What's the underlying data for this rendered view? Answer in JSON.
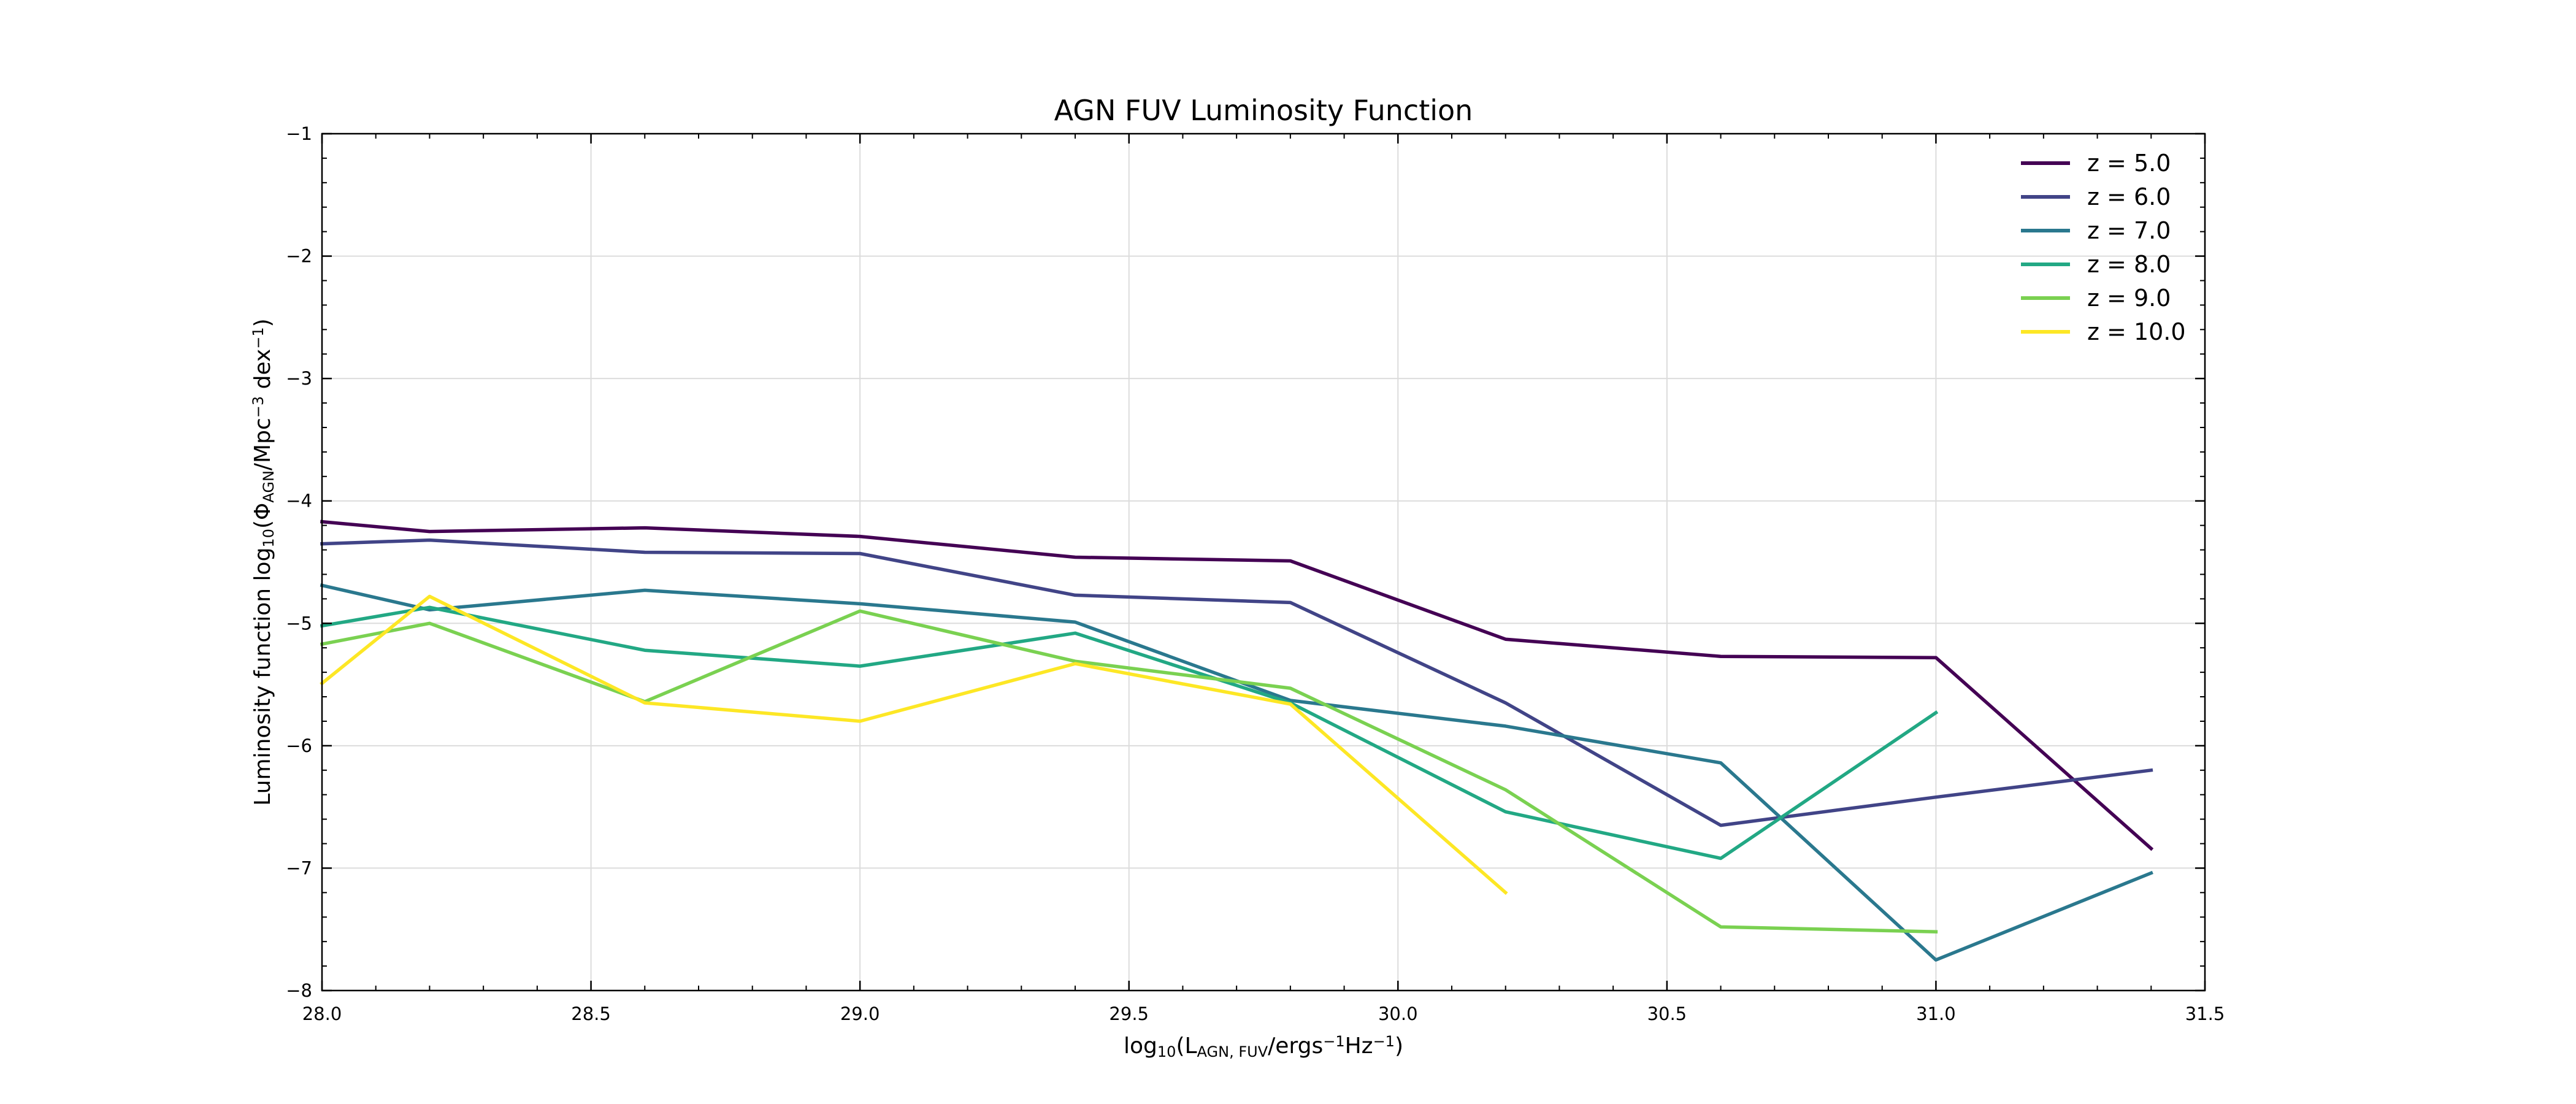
{
  "chart_data": {
    "type": "line",
    "title": "AGN FUV Luminosity Function",
    "xlabel": {
      "prefix": "log",
      "sub1": "10",
      "open": "(L",
      "sub2": "AGN, FUV",
      "mid": "/ergs",
      "sup1": "−1",
      "mid2": "Hz",
      "sup2": "−1",
      "close": ")"
    },
    "ylabel": {
      "prefix": "Luminosity function log",
      "sub1": "10",
      "open": "(Φ",
      "sub2": "AGN",
      "mid": "/Mpc",
      "sup1": "−3",
      "mid2": " dex",
      "sup2": "−1",
      "close": ")"
    },
    "xlim": [
      28.0,
      31.5
    ],
    "ylim": [
      -8,
      -1
    ],
    "xticks": [
      28.0,
      28.5,
      29.0,
      29.5,
      30.0,
      30.5,
      31.0,
      31.5
    ],
    "xtick_labels": [
      "28.0",
      "28.5",
      "29.0",
      "29.5",
      "30.0",
      "30.5",
      "31.0",
      "31.5"
    ],
    "yticks": [
      -8,
      -7,
      -6,
      -5,
      -4,
      -3,
      -2,
      -1
    ],
    "ytick_labels": [
      "−8",
      "−7",
      "−6",
      "−5",
      "−4",
      "−3",
      "−2",
      "−1"
    ],
    "grid": true,
    "legend_position": "top-right",
    "series": [
      {
        "name": "z = 5.0",
        "color": "#440154",
        "points": [
          [
            28.0,
            -4.17
          ],
          [
            28.2,
            -4.25
          ],
          [
            28.6,
            -4.22
          ],
          [
            29.0,
            -4.29
          ],
          [
            29.4,
            -4.46
          ],
          [
            29.8,
            -4.49
          ],
          [
            30.2,
            -5.13
          ],
          [
            30.6,
            -5.27
          ],
          [
            31.0,
            -5.28
          ],
          [
            31.4,
            -6.84
          ]
        ]
      },
      {
        "name": "z = 6.0",
        "color": "#414487",
        "points": [
          [
            28.0,
            -4.35
          ],
          [
            28.2,
            -4.32
          ],
          [
            28.6,
            -4.42
          ],
          [
            29.0,
            -4.43
          ],
          [
            29.4,
            -4.77
          ],
          [
            29.8,
            -4.83
          ],
          [
            30.2,
            -5.65
          ],
          [
            30.6,
            -6.65
          ],
          [
            31.0,
            -6.42
          ],
          [
            31.4,
            -6.2
          ]
        ]
      },
      {
        "name": "z = 7.0",
        "color": "#2a788e",
        "points": [
          [
            28.0,
            -4.69
          ],
          [
            28.2,
            -4.89
          ],
          [
            28.6,
            -4.73
          ],
          [
            29.0,
            -4.84
          ],
          [
            29.4,
            -4.99
          ],
          [
            29.8,
            -5.63
          ],
          [
            30.2,
            -5.84
          ],
          [
            30.6,
            -6.14
          ],
          [
            31.0,
            -7.75
          ],
          [
            31.4,
            -7.04
          ]
        ]
      },
      {
        "name": "z = 8.0",
        "color": "#22a884",
        "points": [
          [
            28.0,
            -5.02
          ],
          [
            28.2,
            -4.87
          ],
          [
            28.6,
            -5.22
          ],
          [
            29.0,
            -5.35
          ],
          [
            29.4,
            -5.08
          ],
          [
            29.8,
            -5.65
          ],
          [
            30.2,
            -6.54
          ],
          [
            30.6,
            -6.92
          ],
          [
            31.0,
            -5.73
          ]
        ]
      },
      {
        "name": "z = 9.0",
        "color": "#7ad151",
        "points": [
          [
            28.0,
            -5.17
          ],
          [
            28.2,
            -5.0
          ],
          [
            28.6,
            -5.64
          ],
          [
            29.0,
            -4.9
          ],
          [
            29.4,
            -5.31
          ],
          [
            29.8,
            -5.53
          ],
          [
            30.2,
            -6.36
          ],
          [
            30.6,
            -7.48
          ],
          [
            31.0,
            -7.52
          ]
        ]
      },
      {
        "name": "z = 10.0",
        "color": "#fde725",
        "points": [
          [
            28.0,
            -5.49
          ],
          [
            28.2,
            -4.78
          ],
          [
            28.6,
            -5.65
          ],
          [
            29.0,
            -5.8
          ],
          [
            29.4,
            -5.33
          ],
          [
            29.8,
            -5.66
          ],
          [
            30.2,
            -7.2
          ]
        ]
      }
    ]
  }
}
